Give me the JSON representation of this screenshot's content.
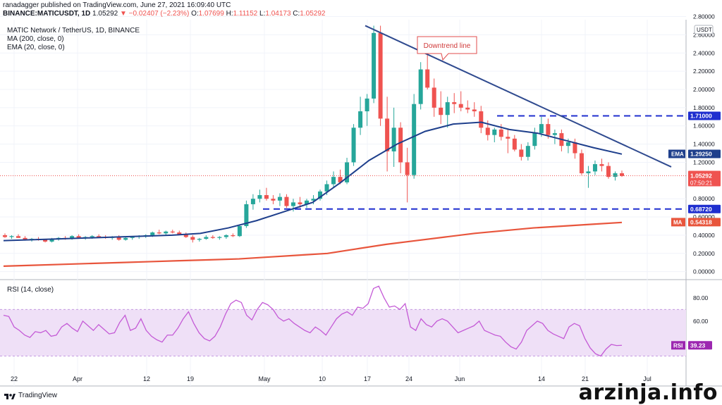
{
  "header": {
    "published": "ranadagger published on TradingView.com, June 27, 2021 16:09:40 UTC",
    "ticker": "BINANCE:MATICUSDT, 1D",
    "last": "1.05292",
    "change": "▼ −0.02407 (−2.23%)",
    "o_label": "O:",
    "o_val": "1.07699",
    "h_label": "H:",
    "h_val": "1.11152",
    "l_label": "L:",
    "l_val": "1.04173",
    "c_label": "C:",
    "c_val": "1.05292"
  },
  "legend": {
    "title": "MATIC Network / TetherUS, 1D, BINANCE",
    "ma": "MA (200, close, 0)",
    "ema": "EMA (20, close, 0)",
    "rsi": "RSI (14, close)"
  },
  "colors": {
    "up": "#26a69a",
    "down": "#ef5350",
    "ema": "#1e3f8c",
    "ma": "#e8553c",
    "rsi": "#c45ad6",
    "rsi_band": "#efe0f7",
    "dash": "#1f2fcf",
    "trend": "#2f4a8f"
  },
  "annotation": "Downtrend line",
  "chart_data": [
    {
      "type": "candlestick",
      "title": "MATIC Network / TetherUS, 1D, BINANCE",
      "y_axis_label": "USDT",
      "ylim": [
        -0.08,
        2.75
      ],
      "y_ticks": [
        "2.80000",
        "2.60000",
        "2.40000",
        "2.20000",
        "2.00000",
        "1.80000",
        "1.60000",
        "1.40000",
        "1.20000",
        "0.80000",
        "0.60000",
        "0.40000",
        "0.20000",
        "0.00000"
      ],
      "x_ticks": [
        "22",
        "Apr",
        "12",
        "19",
        "May",
        "10",
        "17",
        "24",
        "Jun",
        "14",
        "21",
        "Jul"
      ],
      "candles_ohlc": [
        [
          0.4,
          0.42,
          0.37,
          0.38
        ],
        [
          0.38,
          0.4,
          0.36,
          0.39
        ],
        [
          0.39,
          0.41,
          0.37,
          0.37
        ],
        [
          0.37,
          0.39,
          0.34,
          0.35
        ],
        [
          0.35,
          0.37,
          0.33,
          0.36
        ],
        [
          0.36,
          0.38,
          0.34,
          0.35
        ],
        [
          0.35,
          0.36,
          0.32,
          0.33
        ],
        [
          0.33,
          0.37,
          0.32,
          0.36
        ],
        [
          0.36,
          0.38,
          0.34,
          0.37
        ],
        [
          0.37,
          0.39,
          0.35,
          0.36
        ],
        [
          0.36,
          0.4,
          0.35,
          0.39
        ],
        [
          0.39,
          0.41,
          0.36,
          0.37
        ],
        [
          0.37,
          0.39,
          0.35,
          0.38
        ],
        [
          0.38,
          0.4,
          0.36,
          0.39
        ],
        [
          0.39,
          0.41,
          0.37,
          0.38
        ],
        [
          0.38,
          0.4,
          0.36,
          0.37
        ],
        [
          0.37,
          0.39,
          0.35,
          0.38
        ],
        [
          0.38,
          0.4,
          0.34,
          0.35
        ],
        [
          0.35,
          0.38,
          0.34,
          0.37
        ],
        [
          0.37,
          0.39,
          0.35,
          0.38
        ],
        [
          0.38,
          0.4,
          0.36,
          0.39
        ],
        [
          0.39,
          0.41,
          0.37,
          0.4
        ],
        [
          0.4,
          0.44,
          0.38,
          0.43
        ],
        [
          0.43,
          0.46,
          0.41,
          0.42
        ],
        [
          0.42,
          0.45,
          0.4,
          0.44
        ],
        [
          0.44,
          0.46,
          0.42,
          0.43
        ],
        [
          0.43,
          0.45,
          0.4,
          0.41
        ],
        [
          0.41,
          0.43,
          0.37,
          0.38
        ],
        [
          0.38,
          0.4,
          0.32,
          0.35
        ],
        [
          0.35,
          0.37,
          0.33,
          0.36
        ],
        [
          0.36,
          0.4,
          0.35,
          0.38
        ],
        [
          0.38,
          0.4,
          0.36,
          0.37
        ],
        [
          0.37,
          0.39,
          0.35,
          0.38
        ],
        [
          0.38,
          0.41,
          0.36,
          0.4
        ],
        [
          0.4,
          0.42,
          0.38,
          0.39
        ],
        [
          0.39,
          0.52,
          0.38,
          0.5
        ],
        [
          0.5,
          0.78,
          0.48,
          0.74
        ],
        [
          0.74,
          0.85,
          0.68,
          0.8
        ],
        [
          0.8,
          0.9,
          0.76,
          0.84
        ],
        [
          0.84,
          0.92,
          0.78,
          0.8
        ],
        [
          0.8,
          0.84,
          0.74,
          0.78
        ],
        [
          0.78,
          0.86,
          0.72,
          0.82
        ],
        [
          0.82,
          0.85,
          0.7,
          0.72
        ],
        [
          0.72,
          0.8,
          0.66,
          0.76
        ],
        [
          0.76,
          0.82,
          0.7,
          0.74
        ],
        [
          0.74,
          0.8,
          0.7,
          0.78
        ],
        [
          0.78,
          0.84,
          0.74,
          0.8
        ],
        [
          0.8,
          0.9,
          0.78,
          0.88
        ],
        [
          0.88,
          1.0,
          0.84,
          0.96
        ],
        [
          0.96,
          1.1,
          0.92,
          1.04
        ],
        [
          1.04,
          1.12,
          0.96,
          0.98
        ],
        [
          0.98,
          1.25,
          0.96,
          1.2
        ],
        [
          1.2,
          1.62,
          1.16,
          1.58
        ],
        [
          1.58,
          1.92,
          1.5,
          1.76
        ],
        [
          1.76,
          1.95,
          1.6,
          1.9
        ],
        [
          1.9,
          2.7,
          1.85,
          2.62
        ],
        [
          2.62,
          2.7,
          1.6,
          1.68
        ],
        [
          1.68,
          1.92,
          1.1,
          1.32
        ],
        [
          1.32,
          1.8,
          1.15,
          1.58
        ],
        [
          1.58,
          1.64,
          1.08,
          1.2
        ],
        [
          1.2,
          1.36,
          0.76,
          1.06
        ],
        [
          1.06,
          1.95,
          1.02,
          1.84
        ],
        [
          1.84,
          2.3,
          1.78,
          2.22
        ],
        [
          2.22,
          2.46,
          2.0,
          2.02
        ],
        [
          2.02,
          2.12,
          1.7,
          1.8
        ],
        [
          1.8,
          1.98,
          1.62,
          1.72
        ],
        [
          1.72,
          1.92,
          1.58,
          1.86
        ],
        [
          1.86,
          1.96,
          1.74,
          1.84
        ],
        [
          1.84,
          1.98,
          1.76,
          1.8
        ],
        [
          1.8,
          1.88,
          1.74,
          1.78
        ],
        [
          1.78,
          1.86,
          1.7,
          1.76
        ],
        [
          1.76,
          1.82,
          1.52,
          1.58
        ],
        [
          1.58,
          1.66,
          1.44,
          1.5
        ],
        [
          1.5,
          1.58,
          1.42,
          1.56
        ],
        [
          1.56,
          1.62,
          1.44,
          1.48
        ],
        [
          1.48,
          1.56,
          1.3,
          1.46
        ],
        [
          1.46,
          1.5,
          1.32,
          1.34
        ],
        [
          1.34,
          1.4,
          1.22,
          1.26
        ],
        [
          1.26,
          1.42,
          1.22,
          1.38
        ],
        [
          1.38,
          1.58,
          1.34,
          1.52
        ],
        [
          1.52,
          1.7,
          1.48,
          1.62
        ],
        [
          1.62,
          1.68,
          1.46,
          1.5
        ],
        [
          1.5,
          1.56,
          1.4,
          1.52
        ],
        [
          1.52,
          1.56,
          1.32,
          1.38
        ],
        [
          1.38,
          1.46,
          1.3,
          1.42
        ],
        [
          1.42,
          1.46,
          1.24,
          1.3
        ],
        [
          1.3,
          1.34,
          1.06,
          1.08
        ],
        [
          1.08,
          1.16,
          0.92,
          1.1
        ],
        [
          1.1,
          1.22,
          1.06,
          1.18
        ],
        [
          1.18,
          1.24,
          1.1,
          1.16
        ],
        [
          1.16,
          1.2,
          1.02,
          1.04
        ],
        [
          1.04,
          1.1,
          1.0,
          1.08
        ],
        [
          1.08,
          1.11,
          1.04,
          1.05
        ]
      ],
      "series": [
        {
          "name": "MA (200, close, 0)",
          "values": [
            0.06,
            0.07,
            0.08,
            0.09,
            0.1,
            0.11,
            0.12,
            0.13,
            0.14,
            0.16,
            0.18,
            0.2,
            0.25,
            0.3,
            0.34,
            0.38,
            0.42,
            0.45,
            0.48,
            0.5,
            0.52,
            0.54
          ]
        },
        {
          "name": "EMA (20, close, 0)",
          "values": [
            0.34,
            0.35,
            0.36,
            0.37,
            0.38,
            0.39,
            0.4,
            0.42,
            0.48,
            0.56,
            0.66,
            0.76,
            0.98,
            1.22,
            1.4,
            1.54,
            1.62,
            1.64,
            1.56,
            1.52,
            1.44,
            1.36,
            1.29
          ]
        }
      ],
      "labels": {
        "ema_tag": "EMA",
        "ema_value": "1.29250",
        "price_value": "1.05292",
        "countdown": "07:50:21",
        "resistance_value": "1.71000",
        "support_value": "0.68720",
        "ma_tag": "MA",
        "ma_value": "0.54318"
      }
    },
    {
      "type": "line",
      "title": "RSI (14, close)",
      "ylim": [
        14,
        95
      ],
      "y_ticks": [
        "80.00",
        "60.00",
        "40.00"
      ],
      "band": [
        30,
        70
      ],
      "values": [
        65,
        64,
        55,
        52,
        48,
        46,
        51,
        50,
        52,
        47,
        48,
        55,
        58,
        54,
        51,
        60,
        56,
        52,
        57,
        53,
        49,
        50,
        59,
        65,
        52,
        54,
        62,
        52,
        47,
        44,
        42,
        48,
        48,
        54,
        62,
        68,
        58,
        50,
        45,
        43,
        47,
        55,
        66,
        75,
        78,
        76,
        65,
        61,
        70,
        76,
        74,
        70,
        63,
        60,
        62,
        58,
        55,
        52,
        50,
        55,
        52,
        48,
        55,
        62,
        66,
        68,
        65,
        72,
        71,
        75,
        88,
        90,
        80,
        72,
        73,
        70,
        75,
        55,
        52,
        62,
        57,
        55,
        60,
        62,
        60,
        55,
        50,
        52,
        54,
        56,
        60,
        52,
        50,
        48,
        47,
        42,
        38,
        36,
        42,
        52,
        56,
        60,
        58,
        52,
        49,
        47,
        45,
        55,
        58,
        56,
        45,
        37,
        32,
        30,
        36,
        40,
        39,
        39.23
      ],
      "rsi_tag": "RSI",
      "rsi_value": "39.23"
    }
  ],
  "footer": {
    "brand": "TradingView",
    "watermark": "arzinja.info"
  }
}
